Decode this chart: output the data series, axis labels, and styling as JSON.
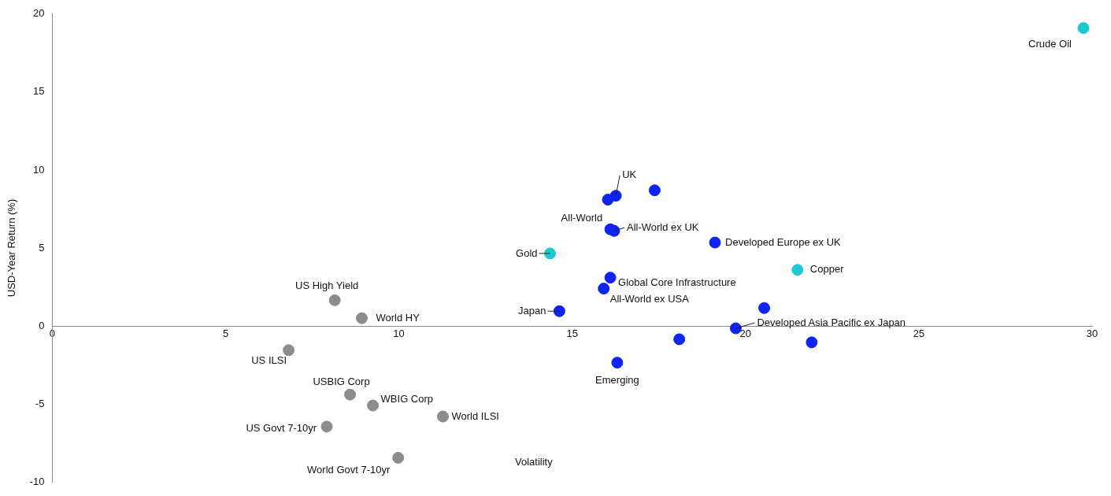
{
  "chart_data": {
    "type": "scatter",
    "ylabel": "USD-Year Return (%)",
    "xlim": [
      0,
      30
    ],
    "xticks": [
      0,
      5,
      10,
      15,
      20,
      25,
      30
    ],
    "ylim": [
      -10,
      20
    ],
    "yticks": [
      -10,
      -5,
      0,
      5,
      10,
      15,
      20
    ],
    "grid": false,
    "legend": false,
    "marker": "circle",
    "series": [
      {
        "color": "#0d24f2",
        "x": [
          16.26,
          16.03,
          17.38,
          16.1,
          16.21,
          19.12,
          16.1,
          15.91,
          14.63,
          20.54,
          19.72,
          18.09,
          21.91,
          16.3
        ],
        "values": [
          8.35,
          8.1,
          8.7,
          6.2,
          6.1,
          5.35,
          3.1,
          2.4,
          0.95,
          1.15,
          -0.15,
          -0.85,
          -1.05,
          -2.35
        ]
      },
      {
        "color": "#1ec8d0",
        "x": [
          29.75,
          14.36,
          21.5
        ],
        "values": [
          19.1,
          4.65,
          3.6
        ]
      },
      {
        "color": "#8c8c8c",
        "x": [
          8.15,
          8.93,
          6.82,
          8.59,
          9.25,
          11.27,
          7.92,
          9.98
        ],
        "values": [
          1.65,
          0.5,
          -1.55,
          -4.4,
          -5.1,
          -5.8,
          -6.45,
          -8.45
        ]
      }
    ],
    "annotations": [
      {
        "text": "Crude Oil",
        "x": 29.75,
        "y": 19.1
      },
      {
        "text": "UK",
        "x": 16.26,
        "y": 8.35
      },
      {
        "text": "All-World",
        "x": 16.1,
        "y": 6.2
      },
      {
        "text": "All-World ex UK",
        "x": 16.21,
        "y": 6.1
      },
      {
        "text": "Developed Europe ex UK",
        "x": 19.12,
        "y": 5.35
      },
      {
        "text": "Gold",
        "x": 14.36,
        "y": 4.65
      },
      {
        "text": "Copper",
        "x": 21.5,
        "y": 3.6
      },
      {
        "text": "Global Core Infrastructure",
        "x": 16.1,
        "y": 3.1
      },
      {
        "text": "All-World ex USA",
        "x": 15.91,
        "y": 2.4
      },
      {
        "text": "Japan",
        "x": 14.63,
        "y": 0.95
      },
      {
        "text": "Developed Asia Pacific ex Japan",
        "x": 19.72,
        "y": -0.15
      },
      {
        "text": "Emerging",
        "x": 16.3,
        "y": -2.35
      },
      {
        "text": "US High Yield",
        "x": 8.15,
        "y": 1.65
      },
      {
        "text": "World HY",
        "x": 8.93,
        "y": 0.5
      },
      {
        "text": "US ILSI",
        "x": 6.82,
        "y": -1.55
      },
      {
        "text": "USBIG Corp",
        "x": 8.59,
        "y": -4.4
      },
      {
        "text": "WBIG Corp",
        "x": 9.25,
        "y": -5.1
      },
      {
        "text": "World ILSI",
        "x": 11.27,
        "y": -5.8
      },
      {
        "text": "US Govt 7-10yr",
        "x": 7.92,
        "y": -6.45
      },
      {
        "text": "World Govt 7-10yr",
        "x": 9.98,
        "y": -8.45
      },
      "Volatility"
    ]
  }
}
